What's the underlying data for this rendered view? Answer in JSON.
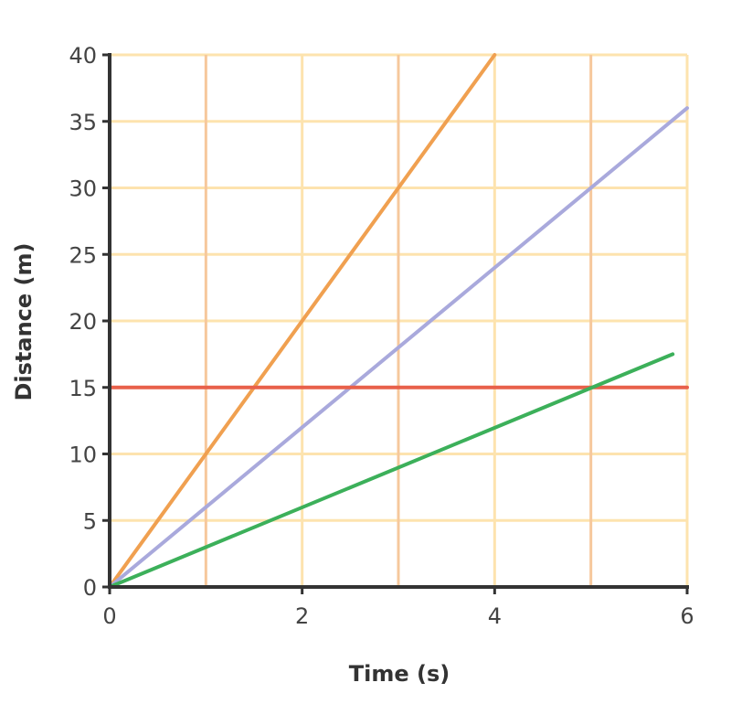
{
  "chart_data": {
    "type": "line",
    "title": "",
    "xlabel": "Time (s)",
    "ylabel": "Distance (m)",
    "xlim": [
      0,
      6
    ],
    "ylim": [
      0,
      40
    ],
    "xticks": [
      "0",
      "2",
      "4",
      "6"
    ],
    "yticks": [
      "0",
      "5",
      "10",
      "15",
      "20",
      "25",
      "30",
      "35",
      "40"
    ],
    "grid": true,
    "series": [
      {
        "color": "#f0a050",
        "points": [
          [
            0,
            0
          ],
          [
            4,
            40
          ]
        ]
      },
      {
        "color": "#a9a9dc",
        "points": [
          [
            0,
            0
          ],
          [
            6,
            36
          ]
        ]
      },
      {
        "color": "#e8604a",
        "points": [
          [
            0,
            15
          ],
          [
            6,
            15
          ]
        ]
      },
      {
        "color": "#3cb05a",
        "points": [
          [
            0,
            0
          ],
          [
            5.85,
            17.5
          ]
        ]
      }
    ],
    "colors": {
      "grid_major": "#f6c89c",
      "grid_minor": "#fde3ae",
      "axis": "#333333"
    }
  }
}
